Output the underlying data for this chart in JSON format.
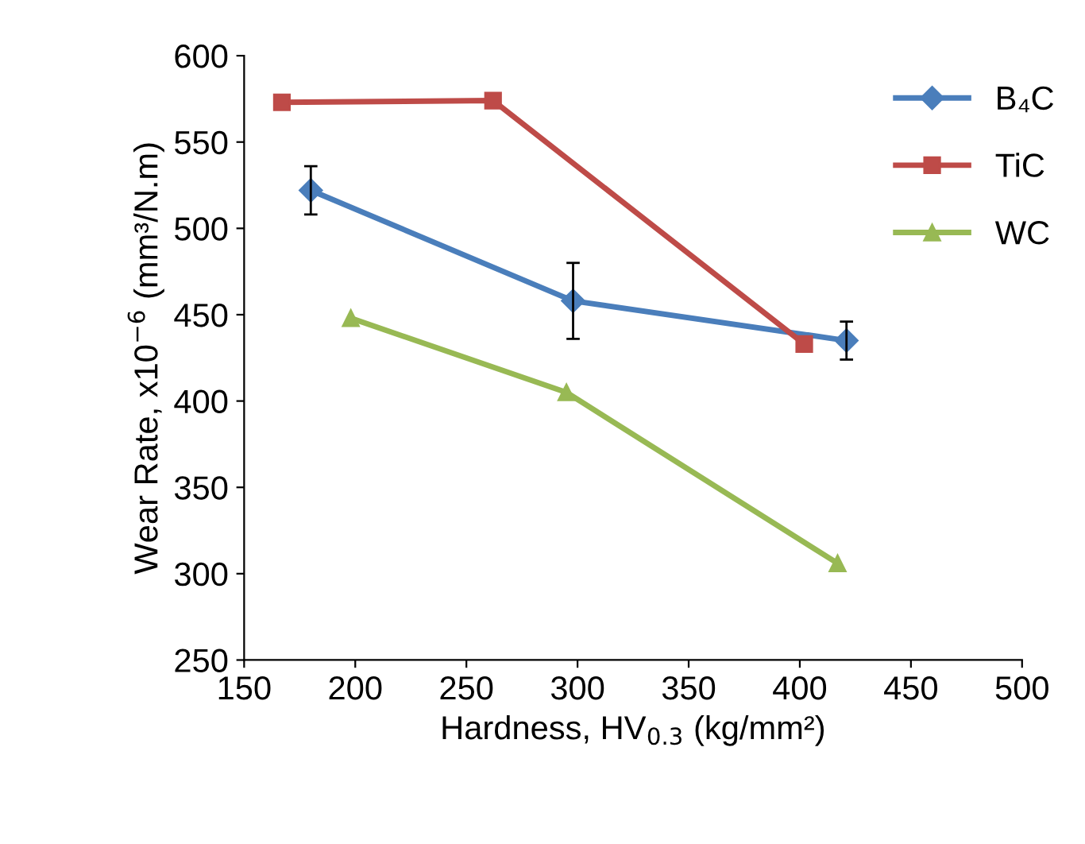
{
  "chart_data": {
    "type": "line",
    "xlabel": "Hardness, HV$_{0.3}$ (kg/mm²)",
    "ylabel": "Wear Rate, x10$^{−6}$ (mm³/N.m)",
    "xlim": [
      150,
      500
    ],
    "xticks": [
      150,
      200,
      250,
      300,
      350,
      400,
      450,
      500
    ],
    "ylim": [
      250,
      600
    ],
    "yticks": [
      250,
      300,
      350,
      400,
      450,
      500,
      550,
      600
    ],
    "grid": false,
    "legend": "top right",
    "series": [
      {
        "name": "B₄C",
        "color": "#4a7ebb",
        "marker": "diamond",
        "x": [
          180,
          298,
          421
        ],
        "values": [
          522,
          458,
          435
        ],
        "errors": [
          14,
          22,
          11
        ]
      },
      {
        "name": "TiC",
        "color": "#be4b48",
        "marker": "square",
        "x": [
          167,
          262,
          402
        ],
        "values": [
          573,
          574,
          433
        ]
      },
      {
        "name": "WC",
        "color": "#98b954",
        "marker": "triangle",
        "x": [
          198,
          295,
          417
        ],
        "values": [
          448,
          405,
          306
        ]
      }
    ]
  }
}
